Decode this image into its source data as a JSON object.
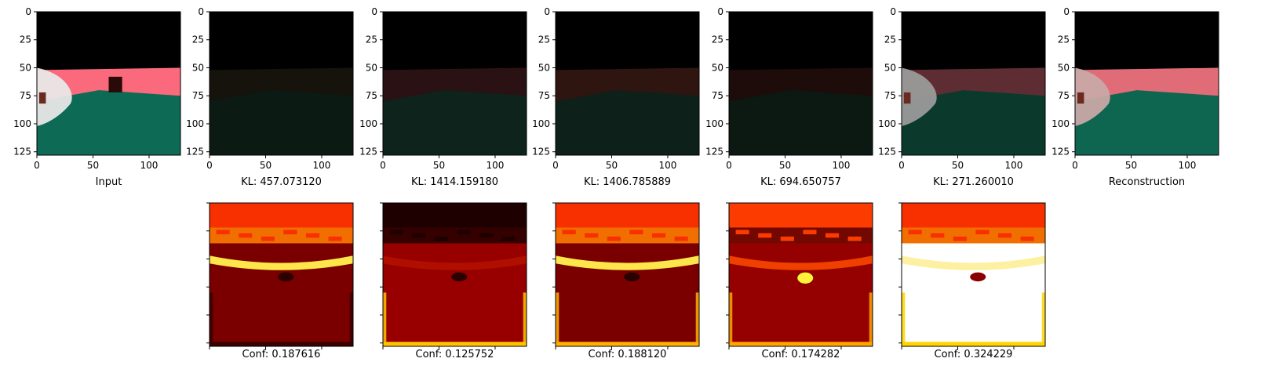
{
  "chart_data": {
    "type": "image-grid",
    "grid": "off",
    "image_size": [
      128,
      128
    ],
    "xticks": [
      0,
      50,
      100
    ],
    "yticks": [
      0,
      25,
      50,
      75,
      100,
      125
    ],
    "top_row": [
      {
        "kind": "input",
        "caption": "Input",
        "palette": {
          "sky": "#000000",
          "wall": "#fb6a7c",
          "ground": "#0c6a55",
          "car": "#e8e8e8",
          "box": "#2a0a08"
        }
      },
      {
        "kind": "branch",
        "caption": "KL: 457.073120",
        "palette": {
          "sky": "#000000",
          "wall": "#15130c",
          "ground": "#0c1a14"
        }
      },
      {
        "kind": "branch",
        "caption": "KL: 1414.159180",
        "palette": {
          "sky": "#000000",
          "wall": "#2a1114",
          "ground": "#0d231c"
        }
      },
      {
        "kind": "branch",
        "caption": "KL: 1406.785889",
        "palette": {
          "sky": "#000000",
          "wall": "#2e1510",
          "ground": "#0d2019"
        }
      },
      {
        "kind": "branch",
        "caption": "KL: 694.650757",
        "palette": {
          "sky": "#000000",
          "wall": "#1e0c0a",
          "ground": "#0c1812"
        }
      },
      {
        "kind": "branch",
        "caption": "KL: 271.260010",
        "palette": {
          "sky": "#000000",
          "wall": "#5e2d33",
          "ground": "#0b3a2c",
          "car": "#9a9a9a"
        }
      },
      {
        "kind": "reconstruction",
        "caption": "Reconstruction",
        "palette": {
          "sky": "#000000",
          "wall": "#e06c77",
          "ground": "#0e6650",
          "car": "#c9a9a6"
        }
      }
    ],
    "bottom_row": [
      {
        "caption": "Conf: 0.187616",
        "confidence": 0.187616,
        "palette": {
          "top": "#f83000",
          "mid": "#f07a00",
          "band": "#fde64a",
          "lower": "#7a0000",
          "edge": "#3b0000"
        }
      },
      {
        "caption": "Conf: 0.125752",
        "confidence": 0.125752,
        "palette": {
          "top": "#1e0000",
          "mid": "#3a0000",
          "band": "#b00f00",
          "lower": "#980000",
          "edge": "#ffc400"
        }
      },
      {
        "caption": "Conf: 0.188120",
        "confidence": 0.18812,
        "palette": {
          "top": "#f83000",
          "mid": "#f07a00",
          "band": "#fde64a",
          "lower": "#7a0000",
          "edge": "#ffb000"
        }
      },
      {
        "caption": "Conf: 0.174282",
        "confidence": 0.174282,
        "palette": {
          "top": "#fb3b00",
          "mid": "#5a0000",
          "band": "#f04000",
          "lower": "#950000",
          "edge": "#ffa500",
          "blob": "#fff23a"
        }
      },
      {
        "caption": "Conf: 0.324229",
        "confidence": 0.324229,
        "palette": {
          "top": "#f83000",
          "mid": "#f07a00",
          "band": "#fdf0a0",
          "lower": "#ffffff",
          "edge": "#ffd400"
        }
      }
    ]
  }
}
